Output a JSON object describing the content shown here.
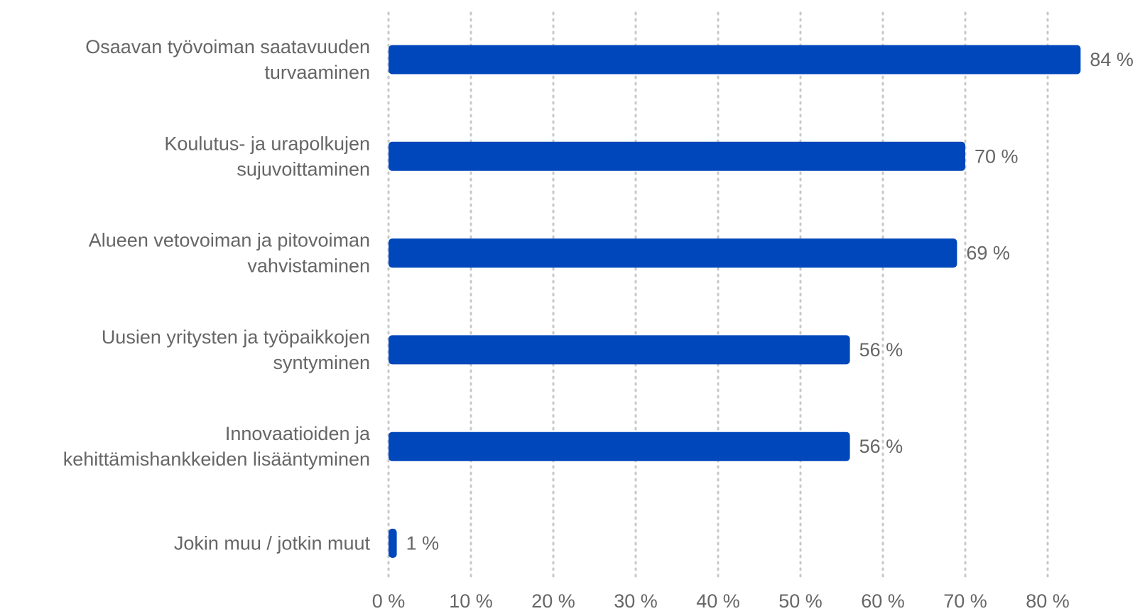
{
  "chart_data": {
    "type": "bar",
    "orientation": "horizontal",
    "categories": [
      [
        "Osaavan työvoiman saatavuuden",
        "turvaaminen"
      ],
      [
        "Koulutus- ja urapolkujen",
        "sujuvoittaminen"
      ],
      [
        "Alueen vetovoiman ja pitovoiman",
        "vahvistaminen"
      ],
      [
        "Uusien yritysten ja työpaikkojen",
        "syntyminen"
      ],
      [
        "Innovaatioiden ja",
        "kehittämishankkeiden lisääntyminen"
      ],
      [
        "Jokin muu / jotkin muut"
      ]
    ],
    "values": [
      84,
      70,
      69,
      56,
      56,
      1
    ],
    "value_labels": [
      "84 %",
      "70 %",
      "69 %",
      "56 %",
      "56 %",
      "1 %"
    ],
    "x_ticks": [
      0,
      10,
      20,
      30,
      40,
      50,
      60,
      70,
      80
    ],
    "x_tick_labels": [
      "0 %",
      "10 %",
      "20 %",
      "30 %",
      "40 %",
      "50 %",
      "60 %",
      "70 %",
      "80 %"
    ],
    "xlim": [
      0,
      84
    ],
    "grid": "vertical dotted",
    "title": "",
    "xlabel": "",
    "ylabel": "",
    "colors": {
      "bar": "#0047BB",
      "grid": "#c8c8c8",
      "text": "#666666"
    }
  }
}
